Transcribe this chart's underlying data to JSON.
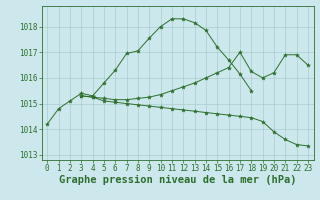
{
  "background_color": "#cce8ec",
  "grid_color": "#aacccc",
  "line_color": "#2d6e2d",
  "marker_color": "#2d6e2d",
  "xlim": [
    -0.5,
    23.5
  ],
  "ylim": [
    1012.8,
    1018.8
  ],
  "yticks": [
    1013,
    1014,
    1015,
    1016,
    1017,
    1018
  ],
  "xticks": [
    0,
    1,
    2,
    3,
    4,
    5,
    6,
    7,
    8,
    9,
    10,
    11,
    12,
    13,
    14,
    15,
    16,
    17,
    18,
    19,
    20,
    21,
    22,
    23
  ],
  "xlabel": "Graphe pression niveau de la mer (hPa)",
  "series": [
    {
      "x": [
        0,
        1,
        2,
        3,
        4,
        5,
        6,
        7,
        8,
        9,
        10,
        11,
        12,
        13,
        14,
        15,
        16,
        17,
        18
      ],
      "y": [
        1014.2,
        1014.8,
        1015.1,
        1015.4,
        1015.3,
        1015.8,
        1016.3,
        1016.95,
        1017.05,
        1017.55,
        1018.0,
        1018.3,
        1018.3,
        1018.15,
        1017.85,
        1017.2,
        1016.7,
        1016.15,
        1015.5
      ]
    },
    {
      "x": [
        3,
        4,
        5,
        6,
        7,
        8,
        9,
        10,
        11,
        12,
        13,
        14,
        15,
        16,
        17,
        18,
        19,
        20,
        21,
        22,
        23
      ],
      "y": [
        1015.3,
        1015.25,
        1015.2,
        1015.15,
        1015.15,
        1015.2,
        1015.25,
        1015.35,
        1015.5,
        1015.65,
        1015.8,
        1016.0,
        1016.2,
        1016.4,
        1017.0,
        1016.25,
        1016.0,
        1016.2,
        1016.9,
        1016.9,
        1016.5
      ]
    },
    {
      "x": [
        3,
        4,
        5,
        6,
        7,
        8,
        9,
        10,
        11,
        12,
        13,
        14,
        15,
        16,
        17,
        18,
        19,
        20,
        21,
        22,
        23
      ],
      "y": [
        1015.3,
        1015.25,
        1015.1,
        1015.05,
        1015.0,
        1014.95,
        1014.9,
        1014.85,
        1014.8,
        1014.75,
        1014.7,
        1014.65,
        1014.6,
        1014.55,
        1014.5,
        1014.45,
        1014.3,
        1013.9,
        1013.6,
        1013.4,
        1013.35
      ]
    }
  ],
  "tick_fontsize": 5.5,
  "label_fontsize": 7.5
}
